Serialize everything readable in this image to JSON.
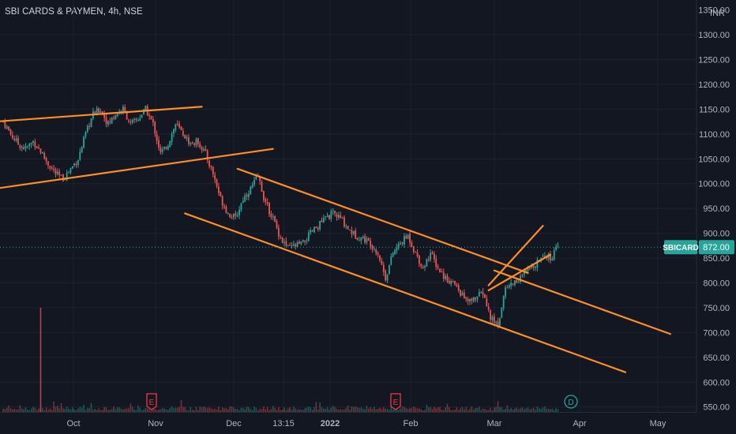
{
  "header": {
    "title": "SBI CARDS & PAYMEN, 4h, NSE"
  },
  "price_axis": {
    "currency": "INR",
    "top_partial": "1350.00"
  },
  "last_price": {
    "symbol": "SBICARD",
    "value": "872.00",
    "numeric": 872
  },
  "colors": {
    "background": "#131722",
    "up": "#26a69a",
    "down": "#ef5350",
    "trendline": "#ff8f1f",
    "grid": "#1e2230",
    "axis_text": "#b2b5be",
    "label_bg": "#26a69a",
    "event_red": "#f23645",
    "event_teal": "#26a69a"
  },
  "events": [
    {
      "letter": "E",
      "date": "Nov",
      "kind": "earnings"
    },
    {
      "letter": "E",
      "date": "Feb",
      "kind": "earnings"
    },
    {
      "letter": "D",
      "date": "Mar",
      "kind": "dividend"
    }
  ],
  "chart_data": {
    "type": "candlestick",
    "title": "SBI CARDS & PAYMEN, 4h, NSE",
    "x_tick_labels": [
      "Oct",
      "Nov",
      "Dec",
      "13:15",
      "2022",
      "Feb",
      "Mar",
      "Apr",
      "May"
    ],
    "y_tick_labels": [
      "1300.00",
      "1250.00",
      "1200.00",
      "1150.00",
      "1100.00",
      "1050.00",
      "1000.00",
      "950.00",
      "900.00",
      "850.00",
      "800.00",
      "750.00",
      "700.00",
      "650.00",
      "600.00",
      "550.00"
    ],
    "y_unit": "INR",
    "ylim": [
      540,
      1370
    ],
    "x_index_range": [
      0,
      300
    ],
    "close_path": [
      [
        0,
        1125
      ],
      [
        4,
        1100
      ],
      [
        8,
        1080
      ],
      [
        12,
        1070
      ],
      [
        16,
        1085
      ],
      [
        20,
        1065
      ],
      [
        24,
        1040
      ],
      [
        28,
        1020
      ],
      [
        32,
        1010
      ],
      [
        36,
        1030
      ],
      [
        40,
        1050
      ],
      [
        44,
        1100
      ],
      [
        48,
        1140
      ],
      [
        52,
        1150
      ],
      [
        56,
        1120
      ],
      [
        60,
        1140
      ],
      [
        64,
        1150
      ],
      [
        68,
        1120
      ],
      [
        72,
        1130
      ],
      [
        76,
        1150
      ],
      [
        80,
        1120
      ],
      [
        84,
        1060
      ],
      [
        88,
        1080
      ],
      [
        92,
        1120
      ],
      [
        96,
        1100
      ],
      [
        100,
        1080
      ],
      [
        104,
        1085
      ],
      [
        108,
        1060
      ],
      [
        112,
        1020
      ],
      [
        116,
        970
      ],
      [
        120,
        940
      ],
      [
        124,
        930
      ],
      [
        128,
        970
      ],
      [
        132,
        990
      ],
      [
        136,
        1015
      ],
      [
        140,
        960
      ],
      [
        144,
        930
      ],
      [
        148,
        890
      ],
      [
        152,
        870
      ],
      [
        156,
        875
      ],
      [
        160,
        880
      ],
      [
        164,
        900
      ],
      [
        168,
        915
      ],
      [
        172,
        930
      ],
      [
        176,
        940
      ],
      [
        180,
        930
      ],
      [
        184,
        910
      ],
      [
        188,
        895
      ],
      [
        192,
        890
      ],
      [
        196,
        880
      ],
      [
        200,
        860
      ],
      [
        204,
        810
      ],
      [
        208,
        860
      ],
      [
        212,
        880
      ],
      [
        216,
        895
      ],
      [
        220,
        860
      ],
      [
        224,
        830
      ],
      [
        228,
        860
      ],
      [
        232,
        830
      ],
      [
        236,
        810
      ],
      [
        240,
        800
      ],
      [
        244,
        780
      ],
      [
        248,
        760
      ],
      [
        252,
        770
      ],
      [
        256,
        780
      ],
      [
        260,
        730
      ],
      [
        264,
        715
      ],
      [
        268,
        790
      ],
      [
        272,
        800
      ],
      [
        276,
        810
      ],
      [
        280,
        825
      ],
      [
        284,
        840
      ],
      [
        288,
        860
      ],
      [
        292,
        850
      ],
      [
        296,
        872
      ]
    ],
    "volume_spike": {
      "index": 20,
      "value_fraction": 1.0
    },
    "trendlines": [
      {
        "name": "upper-flat",
        "points": [
          [
            -4,
            1125
          ],
          [
            106,
            1155
          ]
        ]
      },
      {
        "name": "rising-support",
        "points": [
          [
            -4,
            990
          ],
          [
            144,
            1070
          ]
        ]
      },
      {
        "name": "channel-upper",
        "points": [
          [
            125,
            1030
          ],
          [
            280,
            820
          ]
        ]
      },
      {
        "name": "channel-extension",
        "points": [
          [
            262,
            825
          ],
          [
            356,
            697
          ]
        ]
      },
      {
        "name": "channel-lower",
        "points": [
          [
            97,
            940
          ],
          [
            332,
            620
          ]
        ]
      },
      {
        "name": "wedge-upper",
        "points": [
          [
            259,
            795
          ],
          [
            288,
            915
          ]
        ]
      },
      {
        "name": "wedge-lower",
        "points": [
          [
            259,
            785
          ],
          [
            292,
            857
          ]
        ]
      }
    ],
    "grid": true,
    "legend": "none"
  }
}
